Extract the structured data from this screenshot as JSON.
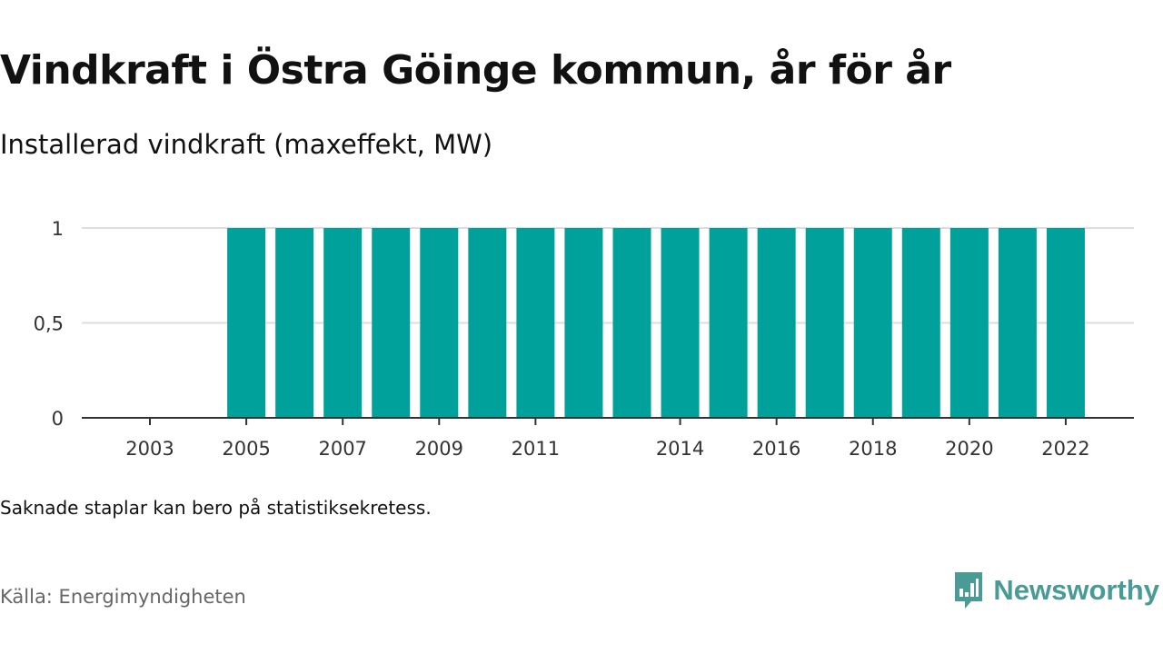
{
  "title": "Vindkraft i Östra Göinge kommun, år för år",
  "subtitle": "Installerad vindkraft (maxeffekt, MW)",
  "note": "Saknade staplar kan bero på statistiksekretess.",
  "source": "Källa: Energimyndigheten",
  "brand": {
    "name": "Newsworthy",
    "color": "#4a9a96"
  },
  "colors": {
    "bar": "#00a19b",
    "grid": "#dddddd",
    "axis": "#333333"
  },
  "chart_data": {
    "type": "bar",
    "categories": [
      "2003",
      "2004",
      "2005",
      "2006",
      "2007",
      "2008",
      "2009",
      "2010",
      "2011",
      "2012",
      "2013",
      "2014",
      "2015",
      "2016",
      "2017",
      "2018",
      "2019",
      "2020",
      "2021",
      "2022"
    ],
    "values": [
      null,
      null,
      1,
      1,
      1,
      1,
      1,
      1,
      1,
      1,
      1,
      1,
      1,
      1,
      1,
      1,
      1,
      1,
      1,
      1
    ],
    "x_tick_labels": [
      "2003",
      "2005",
      "2007",
      "2009",
      "2011",
      "2014",
      "2016",
      "2018",
      "2020",
      "2022"
    ],
    "y_ticks": [
      0,
      0.5,
      1
    ],
    "y_tick_labels": [
      "0",
      "0,5",
      "1"
    ],
    "ylim": [
      0,
      1
    ],
    "xlabel": "",
    "ylabel": "",
    "grid": true,
    "legend": "none"
  }
}
